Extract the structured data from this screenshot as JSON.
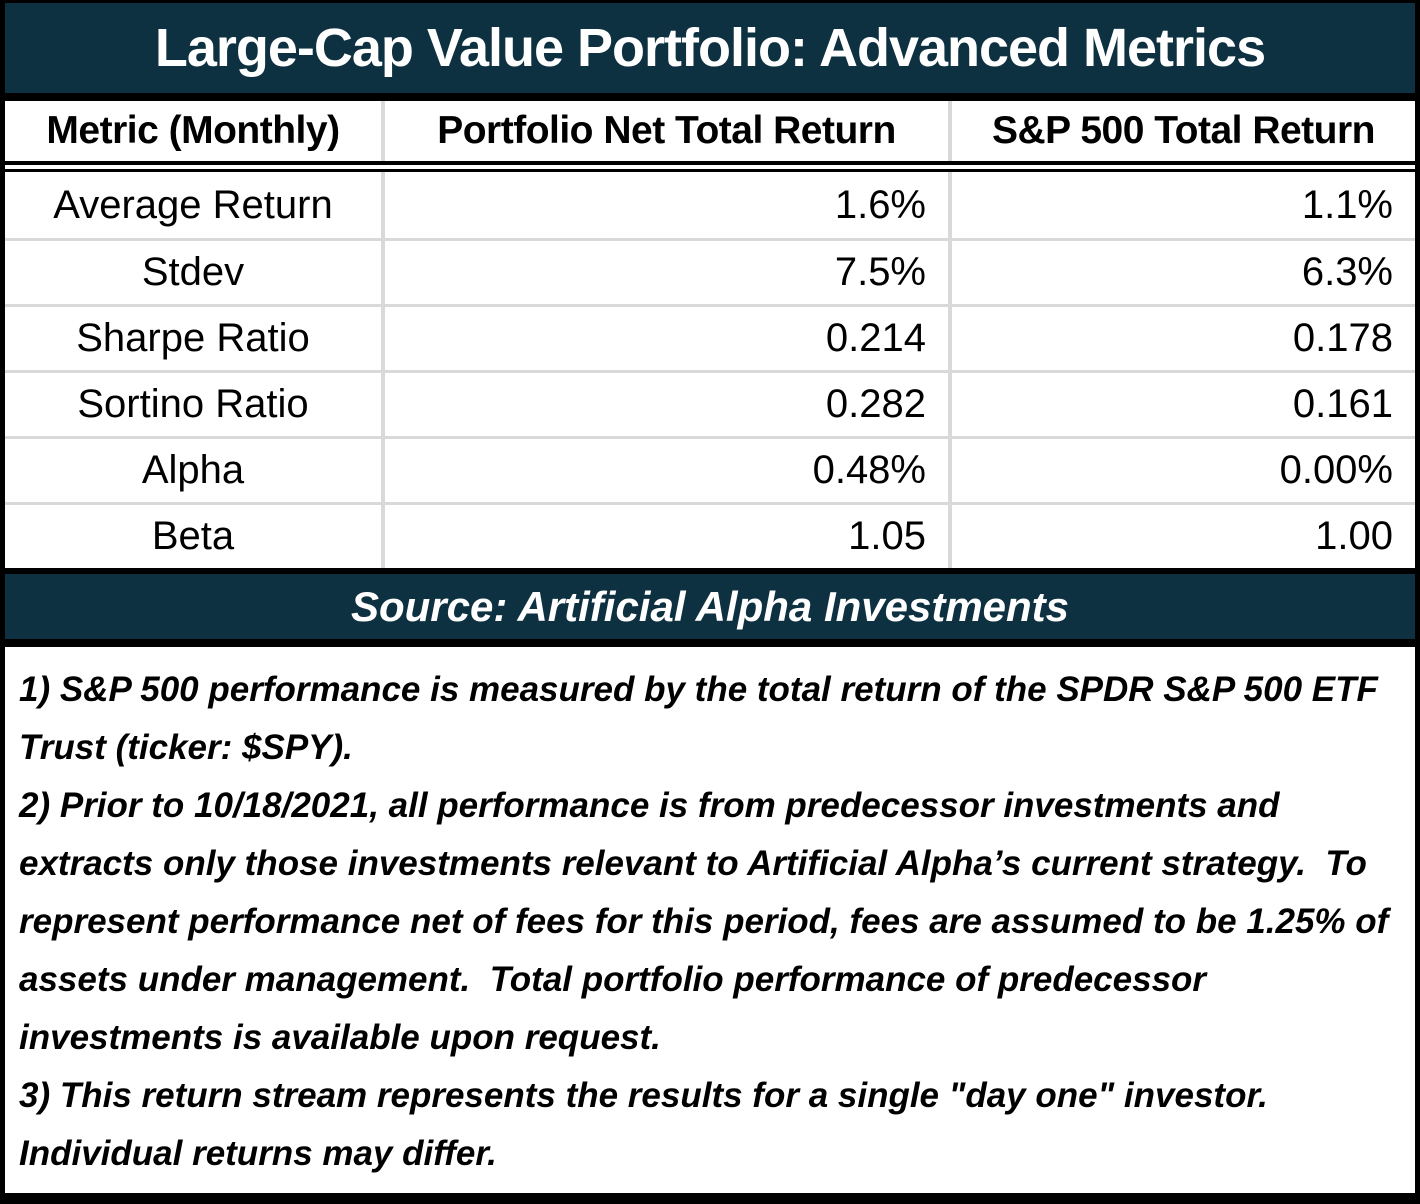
{
  "title": "Large-Cap Value Portfolio: Advanced Metrics",
  "colors": {
    "header_bg": "#0e3141",
    "grid_line": "#d9d9d9",
    "border": "#000000",
    "title_text": "#ffffff",
    "body_text": "#000000"
  },
  "table": {
    "headers": {
      "metric": "Metric (Monthly)",
      "portfolio": "Portfolio Net Total Return",
      "sp500": "S&P 500 Total Return"
    },
    "rows": [
      {
        "metric": "Average Return",
        "portfolio": "1.6%",
        "sp500": "1.1%"
      },
      {
        "metric": "Stdev",
        "portfolio": "7.5%",
        "sp500": "6.3%"
      },
      {
        "metric": "Sharpe Ratio",
        "portfolio": "0.214",
        "sp500": "0.178"
      },
      {
        "metric": "Sortino Ratio",
        "portfolio": "0.282",
        "sp500": "0.161"
      },
      {
        "metric": "Alpha",
        "portfolio": "0.48%",
        "sp500": "0.00%"
      },
      {
        "metric": "Beta",
        "portfolio": "1.05",
        "sp500": "1.00"
      }
    ]
  },
  "source": "Source: Artificial Alpha Investments",
  "footnotes": [
    "1) S&P 500 performance is measured by the total return of the SPDR S&P 500 ETF Trust (ticker: $SPY).",
    "2) Prior to 10/18/2021, all performance is from predecessor investments and extracts only those investments relevant to Artificial Alpha’s current strategy.  To represent performance net of fees for this period, fees are assumed to be 1.25% of assets under management.  Total portfolio performance of predecessor investments is available upon request.",
    "3) This return stream represents the results for a single \"day one\" investor.  Individual returns may differ."
  ],
  "chart_data": {
    "type": "table",
    "title": "Large-Cap Value Portfolio: Advanced Metrics",
    "columns": [
      "Metric (Monthly)",
      "Portfolio Net Total Return",
      "S&P 500 Total Return"
    ],
    "rows": [
      [
        "Average Return",
        "1.6%",
        "1.1%"
      ],
      [
        "Stdev",
        "7.5%",
        "6.3%"
      ],
      [
        "Sharpe Ratio",
        "0.214",
        "0.178"
      ],
      [
        "Sortino Ratio",
        "0.282",
        "0.161"
      ],
      [
        "Alpha",
        "0.48%",
        "0.00%"
      ],
      [
        "Beta",
        "1.05",
        "1.00"
      ]
    ],
    "source": "Source: Artificial Alpha Investments",
    "notes_count": 3
  }
}
